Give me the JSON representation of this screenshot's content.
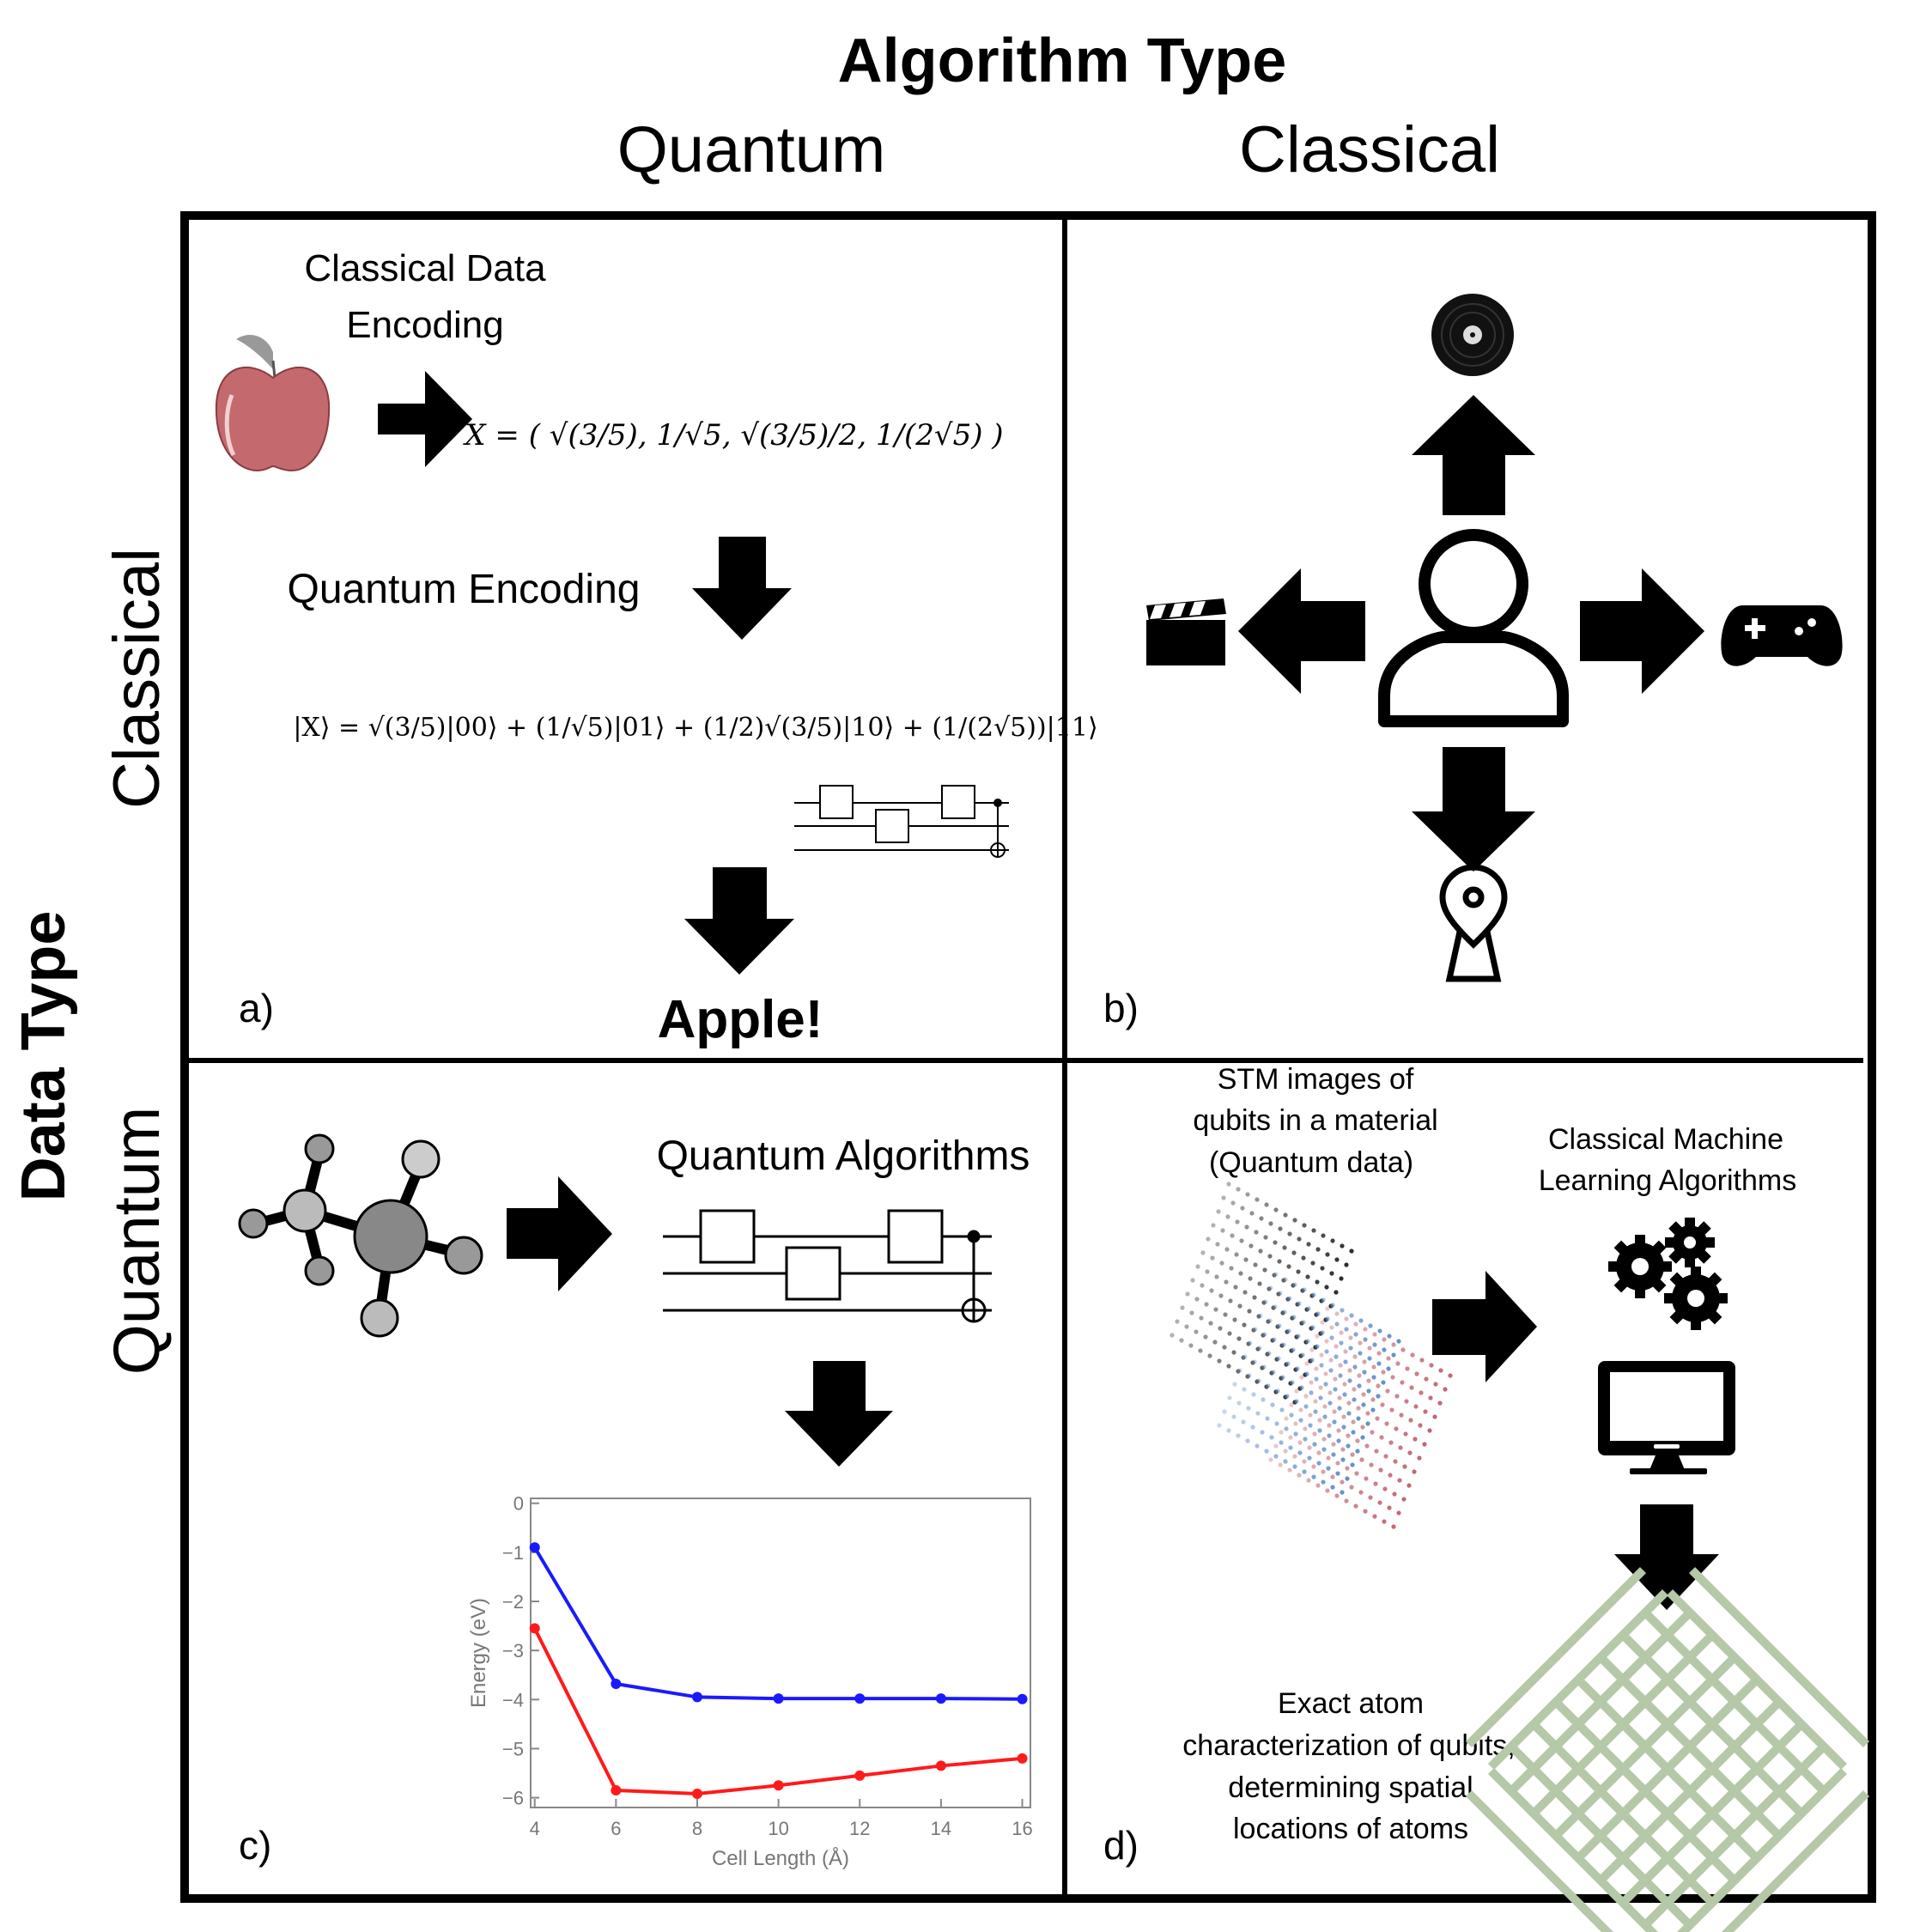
{
  "header": {
    "algorithm_type": "Algorithm Type",
    "col_quantum": "Quantum",
    "col_classical": "Classical",
    "data_type": "Data Type",
    "row_classical": "Classical",
    "row_quantum": "Quantum"
  },
  "panel_a": {
    "label": "a)",
    "classical_encoding_line1": "Classical Data",
    "classical_encoding_line2": "Encoding",
    "quantum_encoding": "Quantum Encoding",
    "result": "Apple!",
    "vector_equation": "X = ( √(3/5), 1/√5, √(3/5)/2, 1/(2√5) )",
    "state_equation": "|X⟩ = √(3/5)|00⟩ + (1/√5)|01⟩ + (1/2)√(3/5)|10⟩ + (1/(2√5))|11⟩",
    "apple_color": "#c46a6e"
  },
  "panel_b": {
    "label": "b)",
    "icons": [
      "vinyl-record-icon",
      "clapperboard-icon",
      "gamepad-icon",
      "map-pin-icon",
      "user-icon"
    ]
  },
  "panel_c": {
    "label": "c)",
    "algorithms_label": "Quantum Algorithms"
  },
  "panel_d": {
    "label": "d)",
    "stm_line1": "STM images of",
    "stm_line2": "qubits in a material",
    "stm_line3": "(Quantum data)",
    "ml_line1": "Classical Machine",
    "ml_line2": "Learning Algorithms",
    "result_line1": "Exact atom",
    "result_line2": "characterization of qubits,",
    "result_line3": "determining spatial",
    "result_line4": "locations of atoms",
    "lattice_color": "#b5c8a8",
    "dot_colors": [
      "#222222",
      "#5b8cc8",
      "#c0606a"
    ]
  },
  "chart_data": {
    "type": "line",
    "xlabel": "Cell Length (Å)",
    "ylabel": "Energy (eV)",
    "x": [
      4,
      6,
      8,
      10,
      12,
      14,
      16
    ],
    "xlim": [
      3.9,
      16.2
    ],
    "ylim": [
      -6.2,
      0.1
    ],
    "xticks": [
      "4",
      "6",
      "8",
      "10",
      "12",
      "14",
      "16"
    ],
    "yticks": [
      "0",
      "−1",
      "−2",
      "−3",
      "−4",
      "−5",
      "−6"
    ],
    "ytick_values": [
      0,
      -1,
      -2,
      -3,
      -4,
      -5,
      -6
    ],
    "series": [
      {
        "color": "#1a1aff",
        "values": [
          -0.9,
          -3.68,
          -3.95,
          -3.98,
          -3.98,
          -3.98,
          -3.99
        ]
      },
      {
        "color": "#ff1a1a",
        "values": [
          -2.55,
          -5.85,
          -5.92,
          -5.75,
          -5.55,
          -5.35,
          -5.2
        ]
      }
    ]
  }
}
